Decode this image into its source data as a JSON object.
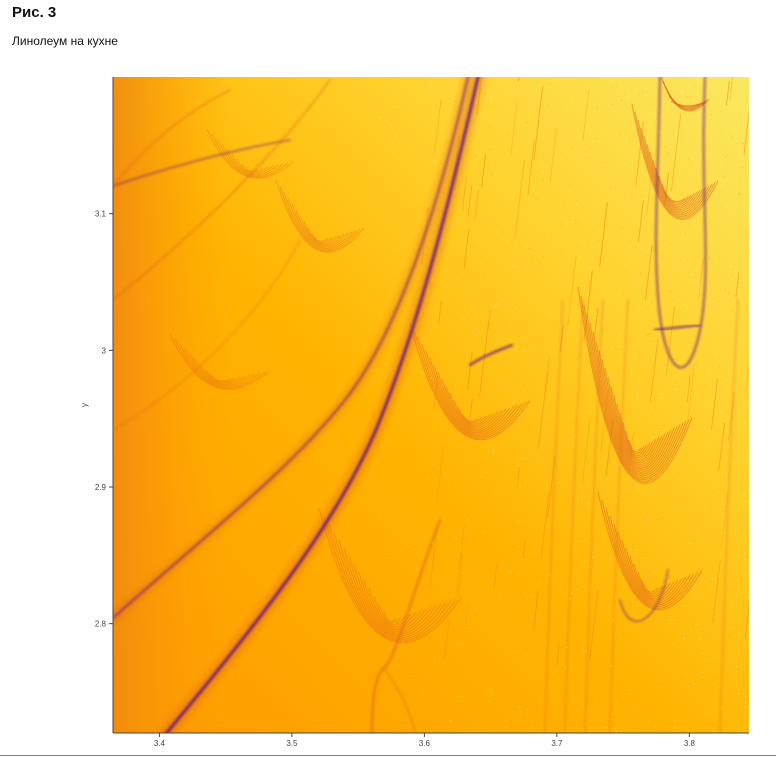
{
  "figure": {
    "title": "Рис. 3",
    "caption": "Линолеум на кухне"
  },
  "colors": {
    "background": "#ffa300",
    "light": "#fbe860",
    "dark": "#6e1c78",
    "mid": "#e0601c",
    "axis": "#444444"
  },
  "chart_data": {
    "type": "heatmap",
    "title": "",
    "xlabel": "",
    "ylabel": "y",
    "colormap": "inferno-like (dark purple → orange → pale yellow)",
    "xlim": [
      3.365,
      3.845
    ],
    "ylim": [
      2.72,
      3.2
    ],
    "x_ticks": [
      3.4,
      3.5,
      3.6,
      3.7,
      3.8
    ],
    "x_tick_labels": [
      "3.4",
      "3.5",
      "3.6",
      "3.7",
      "3.8"
    ],
    "y_ticks": [
      2.8,
      2.9,
      3.0,
      3.1
    ],
    "y_tick_labels": [
      "2.8",
      "2.9",
      "3",
      "3.1"
    ],
    "grid": false,
    "legend": "none"
  }
}
